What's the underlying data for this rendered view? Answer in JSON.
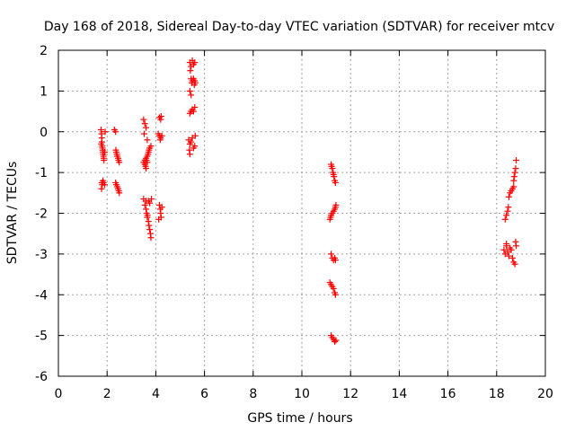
{
  "chart_data": {
    "type": "scatter",
    "title": "Day 168 of 2018, Sidereal Day-to-day VTEC variation (SDTVAR) for receiver mtcv",
    "xlabel": "GPS time / hours",
    "ylabel": "SDTVAR / TECUs",
    "xlim": [
      0,
      20
    ],
    "ylim": [
      -6,
      2
    ],
    "xticks": [
      "0",
      "2",
      "4",
      "6",
      "8",
      "10",
      "12",
      "14",
      "16",
      "18",
      "20"
    ],
    "yticks": [
      "-6",
      "-5",
      "-4",
      "-3",
      "-2",
      "-1",
      "0",
      "1",
      "2"
    ],
    "grid": true,
    "marker": "+",
    "series": [
      {
        "name": "mtcv",
        "color": "#ff0000",
        "points": [
          [
            1.75,
            0.05
          ],
          [
            1.77,
            -0.05
          ],
          [
            1.78,
            -0.15
          ],
          [
            1.79,
            -0.25
          ],
          [
            1.8,
            -0.35
          ],
          [
            1.81,
            -0.4
          ],
          [
            1.82,
            -0.45
          ],
          [
            1.83,
            -0.5
          ],
          [
            1.84,
            -0.55
          ],
          [
            1.85,
            -0.6
          ],
          [
            1.86,
            -0.65
          ],
          [
            1.87,
            -0.7
          ],
          [
            1.76,
            -0.3
          ],
          [
            1.9,
            -0.5
          ],
          [
            1.92,
            0.0
          ],
          [
            1.78,
            -1.25
          ],
          [
            1.8,
            -1.3
          ],
          [
            1.83,
            -1.2
          ],
          [
            1.85,
            -1.25
          ],
          [
            1.9,
            -1.3
          ],
          [
            1.77,
            -1.4
          ],
          [
            2.3,
            0.05
          ],
          [
            2.35,
            0.0
          ],
          [
            2.38,
            -0.5
          ],
          [
            2.4,
            -0.55
          ],
          [
            2.42,
            -0.6
          ],
          [
            2.45,
            -0.65
          ],
          [
            2.47,
            -0.7
          ],
          [
            2.5,
            -0.75
          ],
          [
            2.36,
            -0.45
          ],
          [
            2.35,
            -1.25
          ],
          [
            2.38,
            -1.3
          ],
          [
            2.42,
            -1.35
          ],
          [
            2.45,
            -1.4
          ],
          [
            2.48,
            -1.45
          ],
          [
            2.5,
            -1.5
          ],
          [
            3.5,
            0.3
          ],
          [
            3.55,
            0.2
          ],
          [
            3.6,
            0.1
          ],
          [
            3.65,
            -0.2
          ],
          [
            3.52,
            -0.05
          ],
          [
            3.5,
            -0.75
          ],
          [
            3.55,
            -0.8
          ],
          [
            3.58,
            -0.85
          ],
          [
            3.6,
            -0.9
          ],
          [
            3.62,
            -0.7
          ],
          [
            3.65,
            -0.6
          ],
          [
            3.68,
            -0.55
          ],
          [
            3.7,
            -0.5
          ],
          [
            3.72,
            -0.45
          ],
          [
            3.75,
            -0.4
          ],
          [
            3.8,
            -0.35
          ],
          [
            3.55,
            -0.7
          ],
          [
            3.6,
            -0.65
          ],
          [
            3.65,
            -0.75
          ],
          [
            3.5,
            -1.65
          ],
          [
            3.55,
            -1.8
          ],
          [
            3.6,
            -1.9
          ],
          [
            3.62,
            -2.0
          ],
          [
            3.65,
            -2.1
          ],
          [
            3.7,
            -2.2
          ],
          [
            3.72,
            -2.3
          ],
          [
            3.75,
            -2.4
          ],
          [
            3.78,
            -2.5
          ],
          [
            3.8,
            -2.6
          ],
          [
            3.7,
            -1.7
          ],
          [
            3.75,
            -1.75
          ],
          [
            3.82,
            -1.65
          ],
          [
            3.6,
            -1.7
          ],
          [
            3.66,
            -2.05
          ],
          [
            4.15,
            0.35
          ],
          [
            4.2,
            0.3
          ],
          [
            4.22,
            0.38
          ],
          [
            4.1,
            -0.05
          ],
          [
            4.15,
            -0.1
          ],
          [
            4.2,
            -0.15
          ],
          [
            4.25,
            -0.1
          ],
          [
            4.18,
            -0.2
          ],
          [
            4.15,
            -1.8
          ],
          [
            4.18,
            -1.9
          ],
          [
            4.2,
            -2.0
          ],
          [
            4.22,
            -2.1
          ],
          [
            4.25,
            -1.85
          ],
          [
            4.12,
            -2.15
          ],
          [
            5.4,
            1.7
          ],
          [
            5.45,
            1.6
          ],
          [
            5.5,
            1.75
          ],
          [
            5.55,
            1.65
          ],
          [
            5.6,
            1.7
          ],
          [
            5.42,
            1.5
          ],
          [
            5.45,
            1.3
          ],
          [
            5.48,
            1.2
          ],
          [
            5.5,
            1.25
          ],
          [
            5.55,
            1.3
          ],
          [
            5.58,
            1.15
          ],
          [
            5.6,
            1.25
          ],
          [
            5.62,
            1.2
          ],
          [
            5.4,
            1.0
          ],
          [
            5.45,
            0.9
          ],
          [
            5.4,
            0.45
          ],
          [
            5.45,
            0.5
          ],
          [
            5.5,
            0.55
          ],
          [
            5.55,
            0.5
          ],
          [
            5.6,
            0.6
          ],
          [
            5.35,
            -0.2
          ],
          [
            5.4,
            -0.3
          ],
          [
            5.45,
            -0.25
          ],
          [
            5.5,
            -0.15
          ],
          [
            5.55,
            -0.4
          ],
          [
            5.6,
            -0.35
          ],
          [
            5.62,
            -0.1
          ],
          [
            5.38,
            -0.45
          ],
          [
            5.4,
            -0.55
          ],
          [
            11.2,
            -0.8
          ],
          [
            11.22,
            -0.85
          ],
          [
            11.25,
            -0.9
          ],
          [
            11.28,
            -1.0
          ],
          [
            11.3,
            -1.05
          ],
          [
            11.32,
            -1.1
          ],
          [
            11.35,
            -1.2
          ],
          [
            11.38,
            -1.25
          ],
          [
            11.15,
            -2.15
          ],
          [
            11.18,
            -2.1
          ],
          [
            11.2,
            -2.05
          ],
          [
            11.25,
            -2.0
          ],
          [
            11.3,
            -1.95
          ],
          [
            11.35,
            -1.9
          ],
          [
            11.38,
            -1.85
          ],
          [
            11.4,
            -1.8
          ],
          [
            11.2,
            -3.0
          ],
          [
            11.25,
            -3.1
          ],
          [
            11.3,
            -3.15
          ],
          [
            11.35,
            -3.1
          ],
          [
            11.38,
            -3.15
          ],
          [
            11.15,
            -3.7
          ],
          [
            11.2,
            -3.75
          ],
          [
            11.25,
            -3.8
          ],
          [
            11.3,
            -3.85
          ],
          [
            11.35,
            -3.95
          ],
          [
            11.38,
            -4.0
          ],
          [
            11.2,
            -5.0
          ],
          [
            11.25,
            -5.05
          ],
          [
            11.3,
            -5.1
          ],
          [
            11.35,
            -5.15
          ],
          [
            11.4,
            -5.12
          ],
          [
            18.35,
            -2.15
          ],
          [
            18.4,
            -2.05
          ],
          [
            18.45,
            -1.95
          ],
          [
            18.48,
            -1.85
          ],
          [
            18.5,
            -1.6
          ],
          [
            18.55,
            -1.5
          ],
          [
            18.6,
            -1.45
          ],
          [
            18.65,
            -1.4
          ],
          [
            18.7,
            -1.35
          ],
          [
            18.7,
            -1.2
          ],
          [
            18.72,
            -1.1
          ],
          [
            18.75,
            -1.0
          ],
          [
            18.78,
            -0.9
          ],
          [
            18.8,
            -0.7
          ],
          [
            18.3,
            -2.9
          ],
          [
            18.35,
            -3.0
          ],
          [
            18.4,
            -2.8
          ],
          [
            18.45,
            -2.95
          ],
          [
            18.5,
            -3.05
          ],
          [
            18.55,
            -2.85
          ],
          [
            18.6,
            -2.9
          ],
          [
            18.65,
            -3.1
          ],
          [
            18.7,
            -3.2
          ],
          [
            18.75,
            -3.25
          ],
          [
            18.8,
            -2.8
          ],
          [
            18.78,
            -2.7
          ],
          [
            18.4,
            -2.75
          ]
        ]
      }
    ]
  }
}
